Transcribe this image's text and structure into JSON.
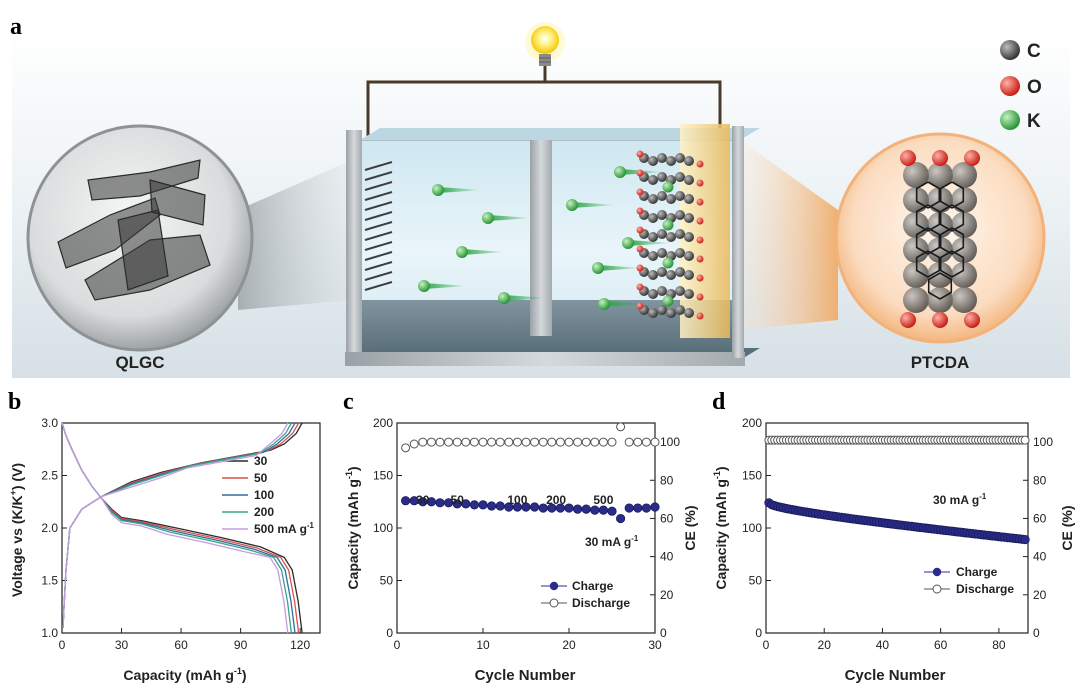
{
  "panel_labels": {
    "a": "a",
    "b": "b",
    "c": "c",
    "d": "d"
  },
  "schematic": {
    "left_material": "QLGC",
    "right_material": "PTCDA",
    "legend": [
      {
        "symbol": "C",
        "color": "#3a3a3a"
      },
      {
        "symbol": "O",
        "color": "#e0261c"
      },
      {
        "symbol": "K",
        "color": "#3cb54a"
      }
    ]
  },
  "chart_data": [
    {
      "panel": "b",
      "type": "line",
      "xlabel": "Capacity (mAh g",
      "xlabel_sup": "-1",
      "xlabel_end": ")",
      "ylabel": "Voltage vs (K/K",
      "ylabel_sup": "+",
      "ylabel_end": ") (V)",
      "xlim": [
        0,
        130
      ],
      "ylim": [
        1.0,
        3.0
      ],
      "xticks": [
        "0",
        "30",
        "60",
        "90",
        "120"
      ],
      "yticks": [
        "1.0",
        "1.5",
        "2.0",
        "2.5",
        "3.0"
      ],
      "legend_position": "right",
      "series": [
        {
          "name": "30",
          "color": "#2b2b2b",
          "charge": [
            [
              0.5,
              1.05
            ],
            [
              1,
              1.25
            ],
            [
              2,
              1.6
            ],
            [
              4,
              2.0
            ],
            [
              10,
              2.18
            ],
            [
              20,
              2.3
            ],
            [
              35,
              2.44
            ],
            [
              50,
              2.53
            ],
            [
              70,
              2.62
            ],
            [
              90,
              2.69
            ],
            [
              105,
              2.74
            ],
            [
              112,
              2.8
            ],
            [
              118,
              2.9
            ],
            [
              121,
              3.0
            ]
          ],
          "discharge": [
            [
              0,
              3.0
            ],
            [
              2,
              2.88
            ],
            [
              5,
              2.75
            ],
            [
              10,
              2.55
            ],
            [
              15,
              2.4
            ],
            [
              20,
              2.28
            ],
            [
              25,
              2.18
            ],
            [
              30,
              2.1
            ],
            [
              40,
              2.07
            ],
            [
              60,
              1.99
            ],
            [
              80,
              1.91
            ],
            [
              100,
              1.82
            ],
            [
              112,
              1.72
            ],
            [
              116,
              1.6
            ],
            [
              119,
              1.3
            ],
            [
              121,
              1.0
            ]
          ]
        },
        {
          "name": "50",
          "color": "#d9534f",
          "charge": [
            [
              0.5,
              1.05
            ],
            [
              1,
              1.25
            ],
            [
              2,
              1.6
            ],
            [
              4,
              2.0
            ],
            [
              10,
              2.18
            ],
            [
              20,
              2.3
            ],
            [
              35,
              2.44
            ],
            [
              50,
              2.53
            ],
            [
              70,
              2.62
            ],
            [
              90,
              2.69
            ],
            [
              105,
              2.74
            ],
            [
              112,
              2.8
            ],
            [
              118,
              2.9
            ],
            [
              121,
              3.0
            ]
          ],
          "discharge": [
            [
              0,
              3.0
            ],
            [
              2,
              2.88
            ],
            [
              5,
              2.75
            ],
            [
              10,
              2.55
            ],
            [
              15,
              2.4
            ],
            [
              20,
              2.28
            ],
            [
              25,
              2.18
            ],
            [
              30,
              2.1
            ],
            [
              40,
              2.07
            ],
            [
              60,
              1.99
            ],
            [
              80,
              1.91
            ],
            [
              100,
              1.82
            ],
            [
              112,
              1.72
            ],
            [
              116,
              1.6
            ],
            [
              119,
              1.3
            ],
            [
              121,
              1.0
            ]
          ]
        },
        {
          "name": "100",
          "color": "#2f6ea3",
          "charge": [
            [
              0.5,
              1.05
            ],
            [
              1,
              1.25
            ],
            [
              2,
              1.6
            ],
            [
              4,
              2.0
            ],
            [
              10,
              2.18
            ],
            [
              20,
              2.3
            ],
            [
              35,
              2.44
            ],
            [
              50,
              2.53
            ],
            [
              70,
              2.62
            ],
            [
              90,
              2.69
            ],
            [
              105,
              2.74
            ],
            [
              112,
              2.8
            ],
            [
              118,
              2.9
            ],
            [
              121,
              3.0
            ]
          ],
          "discharge": [
            [
              0,
              3.0
            ],
            [
              2,
              2.88
            ],
            [
              5,
              2.75
            ],
            [
              10,
              2.55
            ],
            [
              15,
              2.4
            ],
            [
              20,
              2.28
            ],
            [
              25,
              2.18
            ],
            [
              30,
              2.1
            ],
            [
              40,
              2.07
            ],
            [
              60,
              1.99
            ],
            [
              80,
              1.91
            ],
            [
              100,
              1.82
            ],
            [
              112,
              1.72
            ],
            [
              116,
              1.6
            ],
            [
              119,
              1.3
            ],
            [
              121,
              1.0
            ]
          ]
        },
        {
          "name": "200",
          "color": "#3aa58a",
          "charge": [
            [
              0.5,
              1.05
            ],
            [
              1,
              1.25
            ],
            [
              2,
              1.6
            ],
            [
              4,
              2.0
            ],
            [
              10,
              2.18
            ],
            [
              20,
              2.3
            ],
            [
              35,
              2.44
            ],
            [
              50,
              2.53
            ],
            [
              70,
              2.62
            ],
            [
              90,
              2.69
            ],
            [
              105,
              2.74
            ],
            [
              112,
              2.8
            ],
            [
              118,
              2.9
            ],
            [
              121,
              3.0
            ]
          ],
          "discharge": [
            [
              0,
              3.0
            ],
            [
              2,
              2.88
            ],
            [
              5,
              2.75
            ],
            [
              10,
              2.55
            ],
            [
              15,
              2.4
            ],
            [
              20,
              2.28
            ],
            [
              25,
              2.18
            ],
            [
              30,
              2.1
            ],
            [
              40,
              2.07
            ],
            [
              60,
              1.99
            ],
            [
              80,
              1.91
            ],
            [
              100,
              1.82
            ],
            [
              112,
              1.72
            ],
            [
              116,
              1.6
            ],
            [
              119,
              1.3
            ],
            [
              121,
              1.0
            ]
          ]
        },
        {
          "name": "500 mA g",
          "name_sup": "-1",
          "color": "#c79be0",
          "charge": [
            [
              0.5,
              1.05
            ],
            [
              1,
              1.25
            ],
            [
              2,
              1.6
            ],
            [
              4,
              2.0
            ],
            [
              10,
              2.18
            ],
            [
              20,
              2.3
            ],
            [
              35,
              2.44
            ],
            [
              50,
              2.53
            ],
            [
              70,
              2.62
            ],
            [
              90,
              2.69
            ],
            [
              105,
              2.74
            ],
            [
              112,
              2.8
            ],
            [
              118,
              2.9
            ],
            [
              121,
              3.0
            ]
          ],
          "discharge": [
            [
              0,
              3.0
            ],
            [
              2,
              2.88
            ],
            [
              5,
              2.75
            ],
            [
              10,
              2.55
            ],
            [
              15,
              2.4
            ],
            [
              20,
              2.28
            ],
            [
              25,
              2.18
            ],
            [
              30,
              2.1
            ],
            [
              40,
              2.07
            ],
            [
              60,
              1.99
            ],
            [
              80,
              1.91
            ],
            [
              100,
              1.82
            ],
            [
              112,
              1.72
            ],
            [
              116,
              1.6
            ],
            [
              119,
              1.3
            ],
            [
              121,
              1.0
            ]
          ]
        }
      ],
      "curve_offsets_x": [
        0,
        -1.8,
        -3.6,
        -5.4,
        -7.2
      ],
      "curve_offsets_y": [
        0,
        -0.01,
        -0.02,
        -0.03,
        -0.05
      ]
    },
    {
      "panel": "c",
      "type": "scatter",
      "xlabel": "Cycle Number",
      "ylabel": "Capacity (mAh g",
      "ylabel_sup": "-1",
      "ylabel_end": ")",
      "y2label": "CE (%)",
      "xlim": [
        0,
        30
      ],
      "ylim": [
        0,
        200
      ],
      "y2lim": [
        0,
        110
      ],
      "xticks": [
        "0",
        "10",
        "20",
        "30"
      ],
      "yticks": [
        "0",
        "50",
        "100",
        "150",
        "200"
      ],
      "y2ticks": [
        "0",
        "20",
        "40",
        "60",
        "80",
        "100"
      ],
      "rate_labels": [
        "30",
        "50",
        "100",
        "200",
        "500"
      ],
      "rate_label_x": [
        3,
        7,
        14,
        18.5,
        24
      ],
      "annotation": "30 mA g",
      "annotation_sup": "-1",
      "legend": [
        "Charge",
        "Discharge"
      ],
      "x": [
        1,
        2,
        3,
        4,
        5,
        6,
        7,
        8,
        9,
        10,
        11,
        12,
        13,
        14,
        15,
        16,
        17,
        18,
        19,
        20,
        21,
        22,
        23,
        24,
        25,
        26,
        27,
        28,
        29,
        30
      ],
      "charge": [
        126,
        126,
        125,
        125,
        124,
        124,
        123,
        123,
        122,
        122,
        121,
        121,
        120,
        120,
        120,
        120,
        119,
        119,
        119,
        119,
        118,
        118,
        117,
        117,
        116,
        109,
        119,
        119,
        119,
        120
      ],
      "ce": [
        97,
        99,
        100,
        100,
        100,
        100,
        100,
        100,
        100,
        100,
        100,
        100,
        100,
        100,
        100,
        100,
        100,
        100,
        100,
        100,
        100,
        100,
        100,
        100,
        100,
        108,
        100,
        100,
        100,
        100
      ]
    },
    {
      "panel": "d",
      "type": "scatter",
      "xlabel": "Cycle Number",
      "ylabel": "Capacity (mAh g",
      "ylabel_sup": "-1",
      "ylabel_end": ")",
      "y2label": "CE (%)",
      "xlim": [
        0,
        90
      ],
      "ylim": [
        0,
        200
      ],
      "y2lim": [
        0,
        110
      ],
      "xticks": [
        "0",
        "20",
        "40",
        "60",
        "80"
      ],
      "yticks": [
        "0",
        "50",
        "100",
        "150",
        "200"
      ],
      "y2ticks": [
        "0",
        "20",
        "40",
        "60",
        "80",
        "100"
      ],
      "annotation": "30 mA g",
      "annotation_sup": "-1",
      "legend": [
        "Charge",
        "Discharge"
      ],
      "cycles": 89,
      "charge_start": 124,
      "charge_end": 89,
      "ce_value": 101
    }
  ]
}
